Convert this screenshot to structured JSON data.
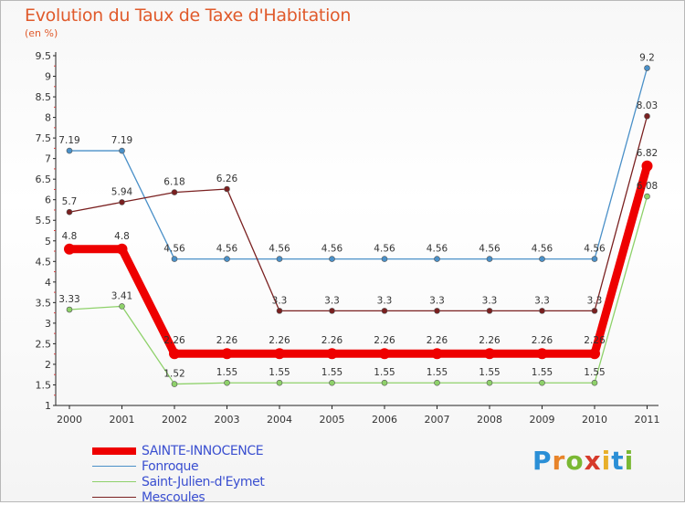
{
  "title": "Evolution du Taux de Taxe d'Habitation",
  "subtitle": "(en %)",
  "brand": {
    "letters": [
      "P",
      "r",
      "o",
      "x",
      "i",
      "t",
      "i"
    ],
    "colors": [
      "#2b8fd6",
      "#e8842a",
      "#7ab833",
      "#d63a2b",
      "#e8b02a",
      "#2b8fd6",
      "#7ab833"
    ]
  },
  "chart_data": {
    "type": "line",
    "x": [
      "2000",
      "2001",
      "2002",
      "2003",
      "2004",
      "2005",
      "2006",
      "2007",
      "2008",
      "2009",
      "2010",
      "2011"
    ],
    "ylim": [
      1,
      9.5
    ],
    "yticks": [
      "1",
      "1.5",
      "2",
      "2.5",
      "3",
      "3.5",
      "4",
      "4.5",
      "5",
      "5.5",
      "6",
      "6.5",
      "7",
      "7.5",
      "8",
      "8.5",
      "9",
      "9.5"
    ],
    "grid": false,
    "legend_position": "bottom-left",
    "series": [
      {
        "name": "SAINTE-INNOCENCE",
        "color": "#ee0000",
        "values": [
          4.8,
          4.8,
          2.26,
          2.26,
          2.26,
          2.26,
          2.26,
          2.26,
          2.26,
          2.26,
          2.26,
          6.82
        ],
        "labels": [
          "4.8",
          "4.8",
          "2.26",
          "2.26",
          "2.26",
          "2.26",
          "2.26",
          "2.26",
          "2.26",
          "2.26",
          "2.26",
          "6.82"
        ]
      },
      {
        "name": "Fonroque",
        "color": "#4a90c8",
        "values": [
          7.19,
          7.19,
          4.56,
          4.56,
          4.56,
          4.56,
          4.56,
          4.56,
          4.56,
          4.56,
          4.56,
          9.2
        ],
        "labels": [
          "7.19",
          "7.19",
          "4.56",
          "4.56",
          "4.56",
          "4.56",
          "4.56",
          "4.56",
          "4.56",
          "4.56",
          "4.56",
          "9.2"
        ]
      },
      {
        "name": "Saint-Julien-d'Eymet",
        "color": "#8ed16a",
        "values": [
          3.33,
          3.41,
          1.52,
          1.55,
          1.55,
          1.55,
          1.55,
          1.55,
          1.55,
          1.55,
          1.55,
          6.08
        ],
        "labels": [
          "3.33",
          "3.41",
          "1.52",
          "1.55",
          "1.55",
          "1.55",
          "1.55",
          "1.55",
          "1.55",
          "1.55",
          "1.55",
          "6.08"
        ]
      },
      {
        "name": "Mescoules",
        "color": "#7a2020",
        "values": [
          5.7,
          5.94,
          6.18,
          6.26,
          3.3,
          3.3,
          3.3,
          3.3,
          3.3,
          3.3,
          3.3,
          8.03
        ],
        "labels": [
          "5.7",
          "5.94",
          "6.18",
          "6.26",
          "3.3",
          "3.3",
          "3.3",
          "3.3",
          "3.3",
          "3.3",
          "3.3",
          "8.03"
        ]
      }
    ]
  }
}
